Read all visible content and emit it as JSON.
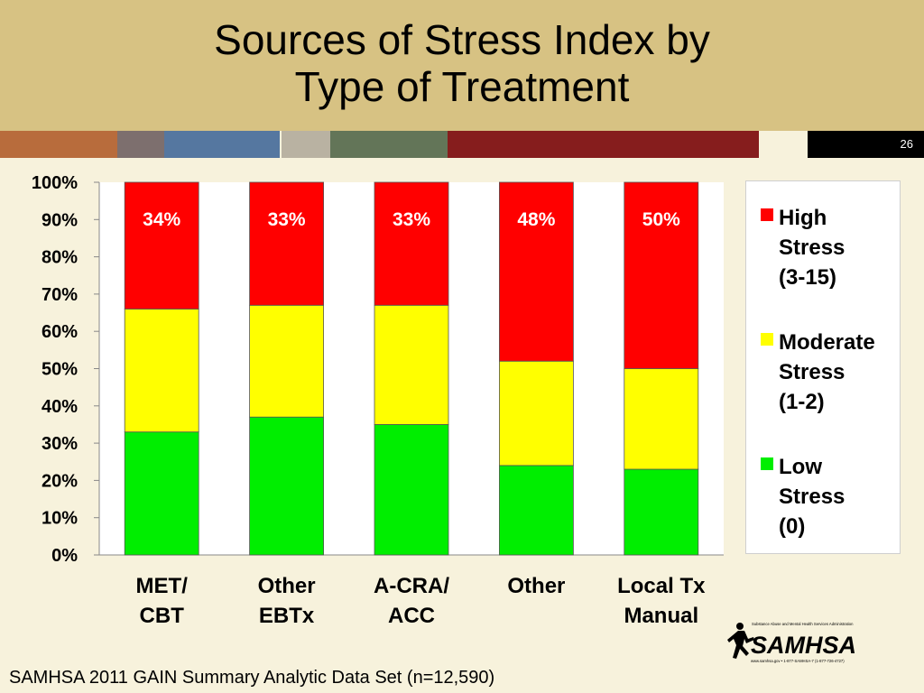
{
  "slide": {
    "title_line1": "Sources of Stress Index by",
    "title_line2": "Type of Treatment",
    "slide_number": "26",
    "source": "SAMHSA 2011 GAIN Summary Analytic Data Set (n=12,590)",
    "stripe_colors": [
      "#b86c3c",
      "#7d6f6e",
      "#5577a0",
      "#b9b2a2",
      "#637558",
      "#861d1d"
    ]
  },
  "logo": {
    "text": "SAMHSA",
    "tagline": "Substance Abuse and Mental Health Services Administration",
    "contact": "www.samhsa.gov • 1-877-SAMHSA-7 (1-877-726-4727)"
  },
  "chart_data": {
    "type": "bar",
    "stacked": true,
    "categories": [
      "MET/\nCBT",
      "Other\nEBTx",
      "A-CRA/\nACC",
      "Other",
      "Local Tx\nManual"
    ],
    "series": [
      {
        "name": "Low Stress (0)",
        "legend_lines": [
          "Low",
          "Stress",
          "(0)"
        ],
        "color": "#00ee00",
        "values": [
          33,
          37,
          35,
          24,
          23
        ]
      },
      {
        "name": "Moderate Stress (1-2)",
        "legend_lines": [
          "Moderate",
          "Stress",
          "(1-2)"
        ],
        "color": "#ffff00",
        "values": [
          33,
          30,
          32,
          28,
          27
        ]
      },
      {
        "name": "High Stress (3-15)",
        "legend_lines": [
          "High",
          "Stress",
          "(3-15)"
        ],
        "color": "#ff0000",
        "values": [
          34,
          33,
          33,
          48,
          50
        ]
      }
    ],
    "data_labels": [
      "34%",
      "33%",
      "33%",
      "48%",
      "50%"
    ],
    "ylim": [
      0,
      100
    ],
    "yticks": [
      "0%",
      "10%",
      "20%",
      "30%",
      "40%",
      "50%",
      "60%",
      "70%",
      "80%",
      "90%",
      "100%"
    ],
    "legend_position": "right",
    "grid": false
  }
}
